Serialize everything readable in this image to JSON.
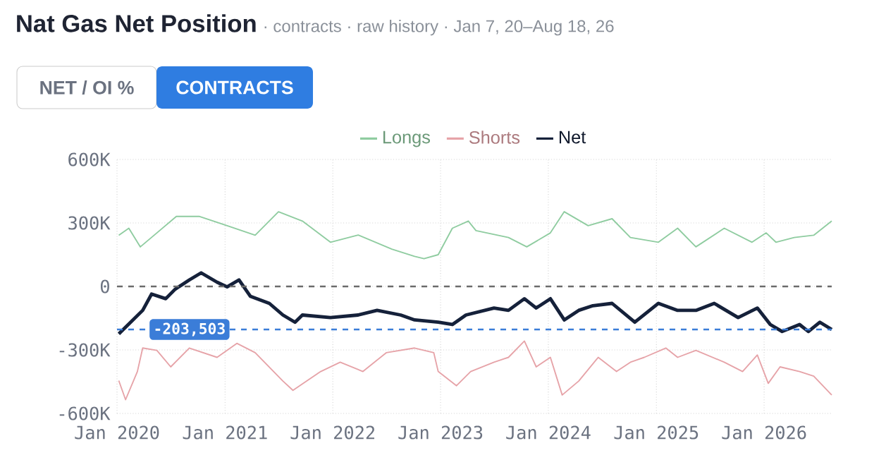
{
  "chart_data": {
    "type": "line",
    "title": "Nat Gas Net Position",
    "subtitle": "· contracts · raw history · Jan 7, 20–Aug 18, 26",
    "annotations": [
      "NET / OI %",
      "CONTRACTS"
    ],
    "xlim": [
      "2020-01-01",
      "2026-08-18"
    ],
    "xticks": [
      {
        "value": "2020-01-01",
        "label": "Jan 2020"
      },
      {
        "value": "2021-01-01",
        "label": "Jan 2021"
      },
      {
        "value": "2022-01-01",
        "label": "Jan 2022"
      },
      {
        "value": "2023-01-01",
        "label": "Jan 2023"
      },
      {
        "value": "2024-01-01",
        "label": "Jan 2024"
      },
      {
        "value": "2025-01-01",
        "label": "Jan 2025"
      },
      {
        "value": "2026-01-01",
        "label": "Jan 2026"
      }
    ],
    "ylim": [
      -600000,
      600000
    ],
    "yticks": [
      {
        "value": -600000,
        "label": "-600K"
      },
      {
        "value": -300000,
        "label": "-300K"
      },
      0,
      {
        "value": 300000,
        "label": "300K"
      },
      {
        "value": 600000,
        "label": "600K"
      }
    ],
    "grid": true,
    "legend": "top",
    "line_style": "solid",
    "ref_lines": [
      {
        "axis": "y",
        "value": 0,
        "color": "#6b6b6b",
        "line_style": "dashed"
      },
      {
        "axis": "y",
        "value": -203503,
        "label": "-203,503",
        "color": "#3b7dd8",
        "line_style": "dashed"
      }
    ],
    "series": [
      {
        "name": "Longs",
        "color": "#8fcca0",
        "x": [
          "2020-01-07",
          "2020-02-10",
          "2020-03-20",
          "2020-05-15",
          "2020-07-20",
          "2020-10-05",
          "2021-01-08",
          "2021-04-13",
          "2021-07-01",
          "2021-09-20",
          "2021-12-24",
          "2022-03-28",
          "2022-07-20",
          "2022-10-05",
          "2022-11-06",
          "2022-12-24",
          "2023-02-10",
          "2023-04-05",
          "2023-05-01",
          "2023-08-19",
          "2023-10-20",
          "2024-01-08",
          "2024-02-24",
          "2024-05-15",
          "2024-08-04",
          "2024-10-05",
          "2025-01-08",
          "2025-03-14",
          "2025-05-15",
          "2025-08-19",
          "2025-11-21",
          "2026-01-08",
          "2026-02-10",
          "2026-04-13",
          "2026-06-18",
          "2026-08-18"
        ],
        "values": [
          242000,
          275000,
          187000,
          253000,
          331000,
          331000,
          287000,
          242000,
          353000,
          309000,
          209000,
          243000,
          176000,
          142000,
          131000,
          150000,
          275000,
          309000,
          264000,
          231000,
          187000,
          253000,
          353000,
          287000,
          320000,
          231000,
          209000,
          275000,
          187000,
          275000,
          209000,
          253000,
          209000,
          231000,
          242000,
          309000
        ]
      },
      {
        "name": "Shorts",
        "color": "#e6a3a8",
        "x": [
          "2020-01-07",
          "2020-01-30",
          "2020-03-10",
          "2020-03-28",
          "2020-05-15",
          "2020-07-01",
          "2020-09-02",
          "2020-12-05",
          "2021-02-10",
          "2021-04-13",
          "2021-07-16",
          "2021-08-19",
          "2021-11-21",
          "2022-01-26",
          "2022-04-13",
          "2022-07-01",
          "2022-10-05",
          "2022-12-09",
          "2022-12-24",
          "2023-02-24",
          "2023-04-13",
          "2023-07-01",
          "2023-08-19",
          "2023-10-12",
          "2023-11-21",
          "2024-01-08",
          "2024-02-17",
          "2024-04-13",
          "2024-06-18",
          "2024-08-19",
          "2024-10-05",
          "2024-11-21",
          "2025-02-02",
          "2025-03-14",
          "2025-05-15",
          "2025-08-19",
          "2025-10-20",
          "2025-12-09",
          "2026-01-15",
          "2026-02-24",
          "2026-05-01",
          "2026-06-18",
          "2026-08-18"
        ],
        "values": [
          -445000,
          -535000,
          -402000,
          -291000,
          -302000,
          -380000,
          -291000,
          -335000,
          -269000,
          -313000,
          -447000,
          -491000,
          -402000,
          -358000,
          -402000,
          -313000,
          -291000,
          -313000,
          -402000,
          -469000,
          -402000,
          -358000,
          -335000,
          -258000,
          -380000,
          -335000,
          -513000,
          -447000,
          -335000,
          -402000,
          -358000,
          -335000,
          -291000,
          -335000,
          -302000,
          -358000,
          -402000,
          -324000,
          -458000,
          -380000,
          -402000,
          -424000,
          -513000
        ]
      },
      {
        "name": "Net",
        "color": "#15213a",
        "x": [
          "2020-01-07",
          "2020-03-28",
          "2020-04-27",
          "2020-06-14",
          "2020-07-16",
          "2020-09-02",
          "2020-10-12",
          "2020-12-05",
          "2021-01-08",
          "2021-02-17",
          "2021-03-28",
          "2021-05-31",
          "2021-07-16",
          "2021-08-26",
          "2021-09-20",
          "2021-12-24",
          "2022-03-28",
          "2022-05-31",
          "2022-08-19",
          "2022-10-05",
          "2022-12-24",
          "2023-02-10",
          "2023-03-28",
          "2023-07-01",
          "2023-08-19",
          "2023-10-12",
          "2023-11-21",
          "2024-01-08",
          "2024-02-24",
          "2024-04-13",
          "2024-05-31",
          "2024-08-04",
          "2024-10-20",
          "2025-01-08",
          "2025-03-14",
          "2025-05-15",
          "2025-07-16",
          "2025-10-05",
          "2025-12-09",
          "2026-01-22",
          "2026-03-03",
          "2026-05-01",
          "2026-05-31",
          "2026-07-09",
          "2026-08-18"
        ],
        "values": [
          -224000,
          -113000,
          -36000,
          -58000,
          -13000,
          31000,
          64000,
          20000,
          -2000,
          31000,
          -47000,
          -80000,
          -135000,
          -169000,
          -135000,
          -147000,
          -135000,
          -113000,
          -135000,
          -158000,
          -169000,
          -180000,
          -135000,
          -102000,
          -113000,
          -58000,
          -102000,
          -58000,
          -158000,
          -113000,
          -91000,
          -80000,
          -169000,
          -80000,
          -113000,
          -113000,
          -80000,
          -147000,
          -102000,
          -180000,
          -213000,
          -180000,
          -213000,
          -169000,
          -203503
        ]
      }
    ]
  }
}
